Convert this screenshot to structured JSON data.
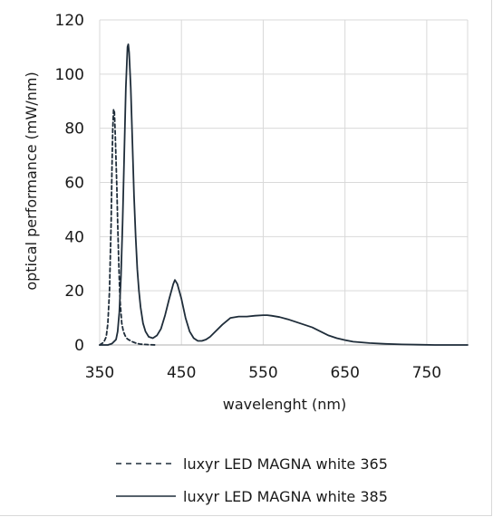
{
  "chart_data": {
    "type": "line",
    "title": "",
    "xlabel": "wavelenght (nm)",
    "ylabel": "optical performance (mW/nm)",
    "xlim": [
      350,
      800
    ],
    "ylim": [
      0,
      120
    ],
    "x_ticks": [
      350,
      450,
      550,
      650,
      750
    ],
    "x_tick_labels": [
      "350",
      "450",
      "550",
      "650",
      "750"
    ],
    "y_ticks": [
      0,
      20,
      40,
      60,
      80,
      100,
      120
    ],
    "y_tick_labels": [
      "0",
      "20",
      "40",
      "60",
      "80",
      "100",
      "120"
    ],
    "grid": true,
    "legend_position": "bottom",
    "series": [
      {
        "name": "luxyr LED MAGNA white 365",
        "style": "dashed",
        "color": "#1f2d3a",
        "x": [
          350,
          355,
          358,
          360,
          362,
          364,
          365,
          366,
          367,
          368,
          369,
          370,
          371,
          372,
          373,
          374,
          375,
          377,
          379,
          381,
          383,
          385,
          390,
          395,
          400,
          405,
          410,
          420
        ],
        "y": [
          0,
          1,
          3,
          8,
          20,
          45,
          65,
          80,
          87,
          86,
          78,
          68,
          58,
          45,
          34,
          24,
          16,
          8,
          5,
          3.5,
          2.5,
          2,
          1.2,
          0.6,
          0.3,
          0.2,
          0.1,
          0
        ]
      },
      {
        "name": "luxyr LED MAGNA white 385",
        "style": "solid",
        "color": "#1f2d3a",
        "x": [
          350,
          360,
          365,
          370,
          372,
          374,
          376,
          378,
          380,
          382,
          384,
          385,
          386,
          388,
          390,
          392,
          394,
          396,
          398,
          400,
          403,
          406,
          410,
          415,
          420,
          425,
          430,
          435,
          440,
          442,
          445,
          450,
          455,
          460,
          465,
          470,
          475,
          480,
          485,
          490,
          500,
          510,
          520,
          530,
          540,
          550,
          555,
          560,
          570,
          580,
          590,
          600,
          610,
          620,
          630,
          640,
          650,
          660,
          680,
          700,
          720,
          740,
          760,
          780,
          800
        ],
        "y": [
          0,
          0,
          0.5,
          2,
          5,
          12,
          25,
          45,
          70,
          95,
          110,
          111,
          108,
          95,
          75,
          55,
          40,
          28,
          20,
          14,
          8,
          5,
          3,
          2.5,
          3.5,
          6,
          11,
          17,
          22.5,
          24,
          22.5,
          17,
          10,
          5,
          2.5,
          1.5,
          1.5,
          2,
          3,
          4.5,
          7.5,
          10,
          10.5,
          10.5,
          10.8,
          11,
          11,
          10.8,
          10.3,
          9.5,
          8.5,
          7.5,
          6.5,
          5,
          3.5,
          2.5,
          1.8,
          1.2,
          0.7,
          0.4,
          0.2,
          0.1,
          0,
          0,
          0
        ]
      }
    ]
  }
}
